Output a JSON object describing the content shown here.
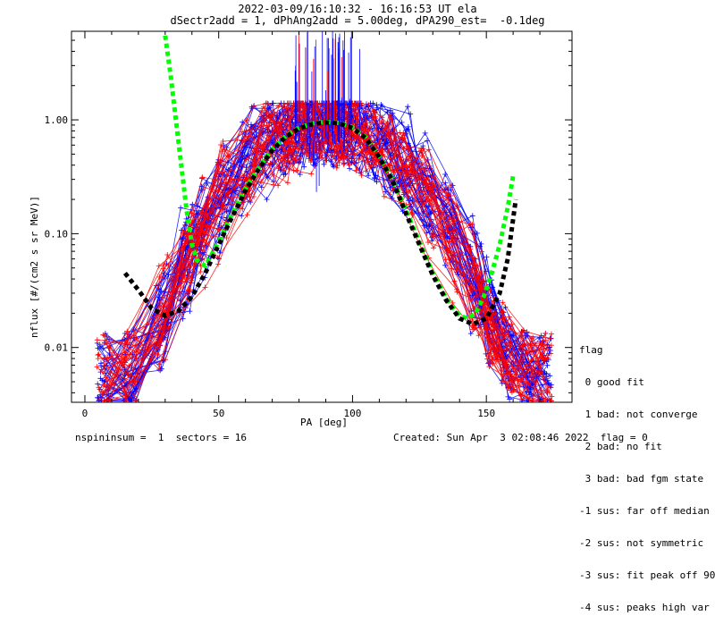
{
  "header": {
    "title_line1": "2022-03-09/16:10:32 - 16:16:53 UT ela",
    "title_line2": "dSectr2add = 1, dPhAng2add = 5.00deg, dPA290_est=  -0.1deg"
  },
  "footer": {
    "left": "nspininsum =  1  sectors = 16",
    "right": "Created: Sun Apr  3 02:08:46 2022  flag = 0"
  },
  "legend": {
    "title": "flag",
    "items": [
      " 0 good fit",
      " 1 bad: not converge",
      " 2 bad: no fit",
      " 3 bad: bad fgm state",
      "-1 sus: far off median",
      "-2 sus: not symmetric",
      "-3 sus: fit peak off 90",
      "-4 sus: peaks high var"
    ]
  },
  "colors": {
    "blue": "#0000ff",
    "red": "#ff0000",
    "green": "#00ff00",
    "black": "#000000"
  },
  "chart_data": {
    "type": "line",
    "xlabel": "PA [deg]",
    "ylabel": "nflux [#/(cm2 s sr MeV)]",
    "xlim": [
      -5,
      182
    ],
    "ylim": [
      0.0033,
      6.0
    ],
    "yscale": "log",
    "xticks": [
      0,
      50,
      100,
      150
    ],
    "yticks": [
      0.01,
      0.1,
      1.0
    ],
    "ytick_labels": [
      "0.01",
      "0.10",
      "1.00"
    ],
    "series": [
      {
        "color": "#00ff00",
        "style": "dashed-thick",
        "x": [
          30,
          32,
          34,
          36,
          38,
          40,
          42,
          45,
          50,
          55,
          60,
          65,
          70,
          75,
          80,
          85,
          90,
          95,
          100,
          105,
          110,
          115,
          120,
          125,
          130,
          135,
          140,
          143,
          146,
          149,
          152,
          155,
          158,
          160
        ],
        "y": [
          5.5,
          2.5,
          1.0,
          0.4,
          0.16,
          0.08,
          0.058,
          0.052,
          0.085,
          0.15,
          0.25,
          0.38,
          0.55,
          0.72,
          0.85,
          0.93,
          0.96,
          0.94,
          0.86,
          0.7,
          0.48,
          0.3,
          0.16,
          0.085,
          0.045,
          0.027,
          0.019,
          0.018,
          0.02,
          0.028,
          0.045,
          0.08,
          0.17,
          0.32
        ]
      },
      {
        "color": "#000000",
        "style": "dashed-thick",
        "x": [
          15,
          20,
          25,
          30,
          35,
          40,
          45,
          50,
          55,
          60,
          65,
          70,
          75,
          80,
          85,
          90,
          95,
          100,
          105,
          110,
          115,
          120,
          125,
          130,
          135,
          140,
          145,
          150,
          155,
          158,
          161
        ],
        "y": [
          0.045,
          0.032,
          0.022,
          0.019,
          0.021,
          0.028,
          0.045,
          0.08,
          0.14,
          0.24,
          0.37,
          0.54,
          0.71,
          0.84,
          0.92,
          0.95,
          0.93,
          0.85,
          0.69,
          0.47,
          0.29,
          0.15,
          0.08,
          0.043,
          0.026,
          0.018,
          0.016,
          0.018,
          0.03,
          0.06,
          0.2
        ]
      }
    ],
    "scatter_series": [
      {
        "color": "#0000ff",
        "peak": 1.05,
        "count": 44
      },
      {
        "color": "#ff0000",
        "peak": 0.95,
        "count": 32
      }
    ]
  }
}
